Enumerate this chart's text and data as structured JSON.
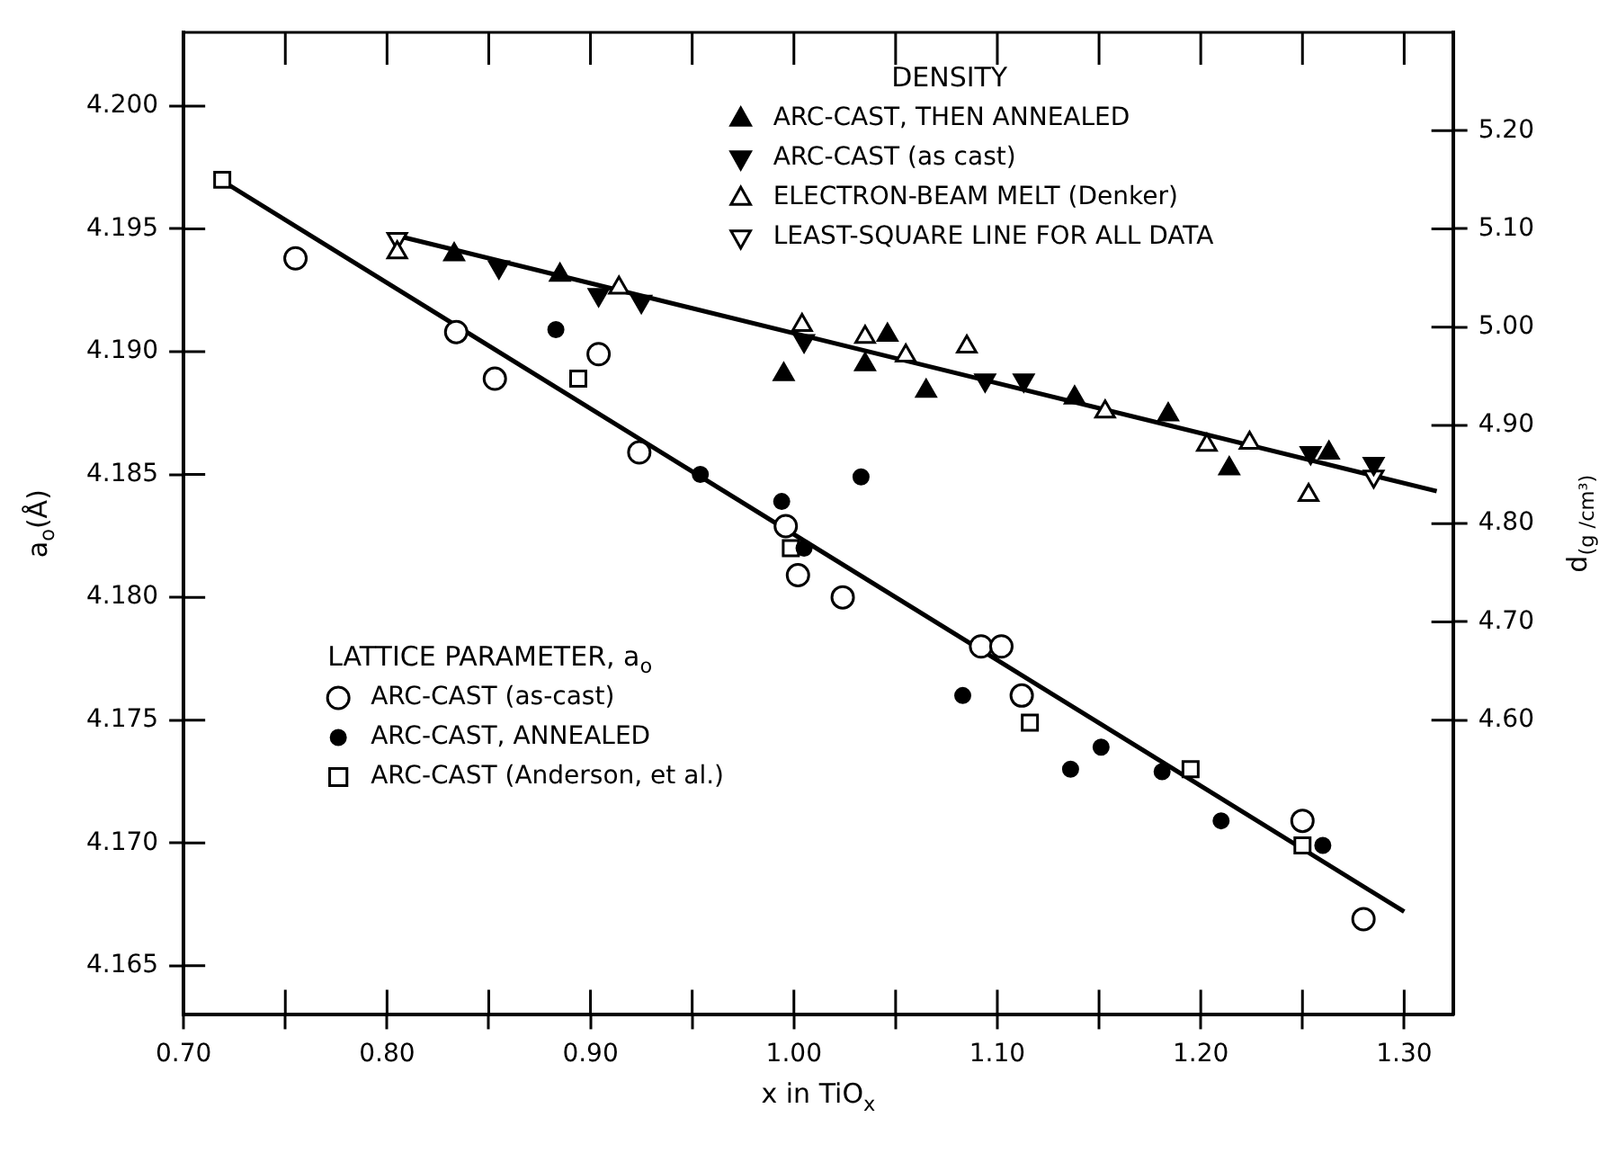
{
  "chart_data": {
    "type": "scatter",
    "xlabel": "x in TiO$_{x}$",
    "ylabel": "a$_{o}$(Å)",
    "y2label": "d$_{(g /cm³)}$",
    "legend_title": [
      "DENSITY",
      "LATTICE PARAMETER, a$_{o}$"
    ],
    "legend": "top right",
    "xlim": [
      0.7,
      1.324
    ],
    "xticks": [
      {
        "value": 0.7,
        "label": "0.70"
      },
      {
        "value": 0.75,
        "label": null
      },
      {
        "value": 0.8,
        "label": "0.80"
      },
      {
        "value": 0.85,
        "label": null
      },
      {
        "value": 0.9,
        "label": "0.90"
      },
      {
        "value": 0.95,
        "label": null
      },
      {
        "value": 1.0,
        "label": "1.00"
      },
      {
        "value": 1.05,
        "label": null
      },
      {
        "value": 1.1,
        "label": "1.10"
      },
      {
        "value": 1.15,
        "label": null
      },
      {
        "value": 1.2,
        "label": "1.20"
      },
      {
        "value": 1.25,
        "label": null
      },
      {
        "value": 1.3,
        "label": "1.30"
      }
    ],
    "ylim": [
      4.163,
      4.203
    ],
    "yticks": [
      {
        "value": 4.165,
        "label": "4.165"
      },
      {
        "value": 4.17,
        "label": "4.170"
      },
      {
        "value": 4.175,
        "label": "4.175"
      },
      {
        "value": 4.18,
        "label": "4.180"
      },
      {
        "value": 4.185,
        "label": "4.185"
      },
      {
        "value": 4.19,
        "label": "4.190"
      },
      {
        "value": 4.195,
        "label": "4.195"
      },
      {
        "value": 4.2,
        "label": "4.200"
      }
    ],
    "y2lim": [
      4.3,
      5.3
    ],
    "y2ticks": [
      {
        "value": 4.6,
        "label": "4.60"
      },
      {
        "value": 4.7,
        "label": "4.70"
      },
      {
        "value": 4.8,
        "label": "4.80"
      },
      {
        "value": 4.9,
        "label": "4.90"
      },
      {
        "value": 5.0,
        "label": "5.00"
      },
      {
        "value": 5.1,
        "label": "5.10"
      },
      {
        "value": 5.2,
        "label": "5.20"
      }
    ],
    "series": [
      {
        "name": "ARC-CAST, THEN ANNEALED",
        "color": "#000000",
        "marker": "triangle",
        "axis": "y2",
        "x": [
          0.833,
          0.885,
          0.995,
          1.046,
          1.035,
          1.065,
          1.138,
          1.184,
          1.214,
          1.263
        ],
        "values": [
          5.074,
          5.053,
          4.952,
          4.992,
          4.962,
          4.935,
          4.928,
          4.911,
          4.856,
          4.872
        ]
      },
      {
        "name": "ARC-CAST (as cast)",
        "color": "#000000",
        "marker": "triangle-down",
        "axis": "y2",
        "x": [
          0.855,
          0.904,
          0.925,
          1.005,
          1.094,
          1.113,
          1.254,
          1.285
        ],
        "values": [
          5.061,
          5.033,
          5.026,
          4.986,
          4.946,
          4.946,
          4.872,
          4.861
        ]
      },
      {
        "name": "ELECTRON-BEAM MELT (Denker)",
        "color": "#000000",
        "marker": "triangle-open",
        "axis": "y2",
        "x": [
          0.805,
          0.914,
          1.004,
          1.035,
          1.055,
          1.085,
          1.153,
          1.203,
          1.224,
          1.253
        ],
        "values": [
          5.076,
          5.04,
          5.002,
          4.99,
          4.971,
          4.98,
          4.914,
          4.88,
          4.882,
          4.829
        ]
      },
      {
        "name": "LEAST-SQUARE LINE FOR ALL DATA",
        "color": "#000000",
        "marker": "triangle-down-open",
        "axis": "y2",
        "x": [
          0.805,
          1.285
        ],
        "values": [
          5.09,
          4.848
        ]
      },
      {
        "type": "line",
        "color": "#000000",
        "marker": "none",
        "axis": "y2",
        "x": [
          0.807,
          1.316
        ],
        "values": [
          5.092,
          4.833
        ]
      },
      {
        "name": "ARC-CAST (as-cast)",
        "color": "#000000",
        "marker": "circle-open",
        "axis": "y",
        "x": [
          0.755,
          0.834,
          0.853,
          0.904,
          0.924,
          0.996,
          1.002,
          1.024,
          1.092,
          1.102,
          1.112,
          1.25,
          1.28
        ],
        "values": [
          4.1938,
          4.1908,
          4.1889,
          4.1899,
          4.1859,
          4.1829,
          4.1809,
          4.18,
          4.178,
          4.178,
          4.176,
          4.1709,
          4.1669
        ]
      },
      {
        "name": "ARC-CAST, ANNEALED",
        "color": "#000000",
        "marker": "circle",
        "axis": "y",
        "x": [
          0.883,
          0.954,
          0.994,
          1.005,
          1.033,
          1.083,
          1.136,
          1.151,
          1.181,
          1.21,
          1.26
        ],
        "values": [
          4.1909,
          4.185,
          4.1839,
          4.182,
          4.1849,
          4.176,
          4.173,
          4.1739,
          4.1729,
          4.1709,
          4.1699
        ]
      },
      {
        "name": "ARC-CAST (Anderson, et al.)",
        "color": "#000000",
        "marker": "square-open",
        "axis": "y",
        "x": [
          0.719,
          0.894,
          0.9985,
          1.116,
          1.195,
          1.25
        ],
        "values": [
          4.197,
          4.1889,
          4.182,
          4.1749,
          4.173,
          4.1699
        ]
      },
      {
        "type": "line",
        "color": "#000000",
        "marker": "none",
        "axis": "y",
        "x": [
          0.72,
          1.3
        ],
        "values": [
          4.1969,
          4.1672
        ]
      }
    ]
  }
}
